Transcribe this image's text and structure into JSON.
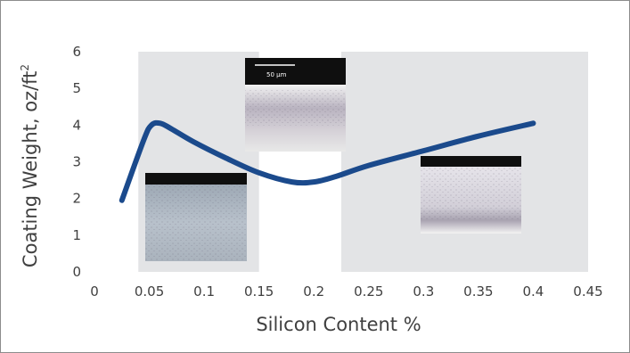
{
  "chart_data": {
    "type": "line",
    "xlabel": "Silicon Content %",
    "ylabel_main": "Coating Weight, oz/ft",
    "ylabel_sup": "2",
    "xlim": [
      0,
      0.45
    ],
    "ylim": [
      0,
      6
    ],
    "x_ticks": [
      "0",
      "0.05",
      "0.1",
      "0.15",
      "0.2",
      "0.25",
      "0.3",
      "0.35",
      "0.4",
      "0.45"
    ],
    "y_ticks": [
      "0",
      "1",
      "2",
      "3",
      "4",
      "5",
      "6"
    ],
    "grid": false,
    "shaded_regions": [
      {
        "from": 0.04,
        "to": 0.15,
        "color": "#e3e4e6"
      },
      {
        "from": 0.225,
        "to": 0.45,
        "color": "#e3e4e6"
      }
    ],
    "series": [
      {
        "color": "#1b4a8c",
        "x": [
          0.025,
          0.045,
          0.052,
          0.06,
          0.07,
          0.09,
          0.12,
          0.15,
          0.18,
          0.2,
          0.22,
          0.25,
          0.3,
          0.35,
          0.4
        ],
        "y": [
          1.95,
          3.6,
          4.0,
          4.05,
          3.9,
          3.55,
          3.1,
          2.7,
          2.45,
          2.45,
          2.6,
          2.9,
          3.3,
          3.7,
          4.05
        ]
      }
    ],
    "insets": [
      {
        "name": "inset-micrograph-low-silicon",
        "scale_label": ""
      },
      {
        "name": "inset-micrograph-mid-silicon",
        "scale_label": "50 µm"
      },
      {
        "name": "inset-micrograph-high-silicon",
        "scale_label": ""
      }
    ]
  }
}
